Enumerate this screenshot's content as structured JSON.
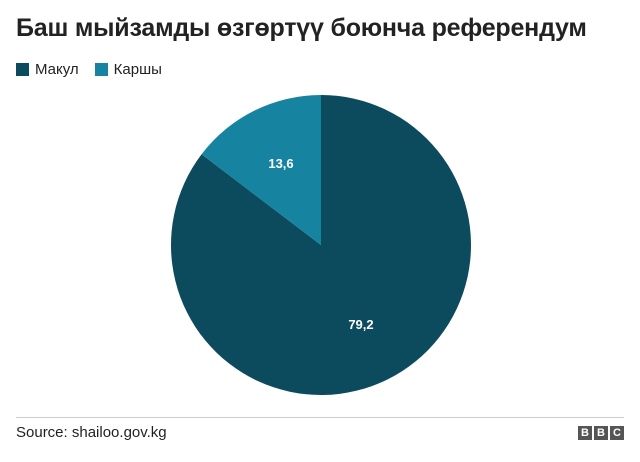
{
  "title": "Баш мыйзамды өзгөртүү боюнча референдум",
  "legend": {
    "items": [
      {
        "label": "Макул",
        "color": "#0c4b5e"
      },
      {
        "label": "Каршы",
        "color": "#1684a0"
      }
    ]
  },
  "chart_data": {
    "type": "pie",
    "title": "Баш мыйзамды өзгөртүү боюнча референдум",
    "slices": [
      {
        "name": "Макул",
        "value": 79.2,
        "label": "79,2",
        "color": "#0c4b5e"
      },
      {
        "name": "Каршы",
        "value": 13.6,
        "label": "13,6",
        "color": "#1684a0"
      }
    ],
    "start": "12 o'clock",
    "direction": "clockwise",
    "legend_position": "top-left"
  },
  "footer": {
    "source": "Source: shailoo.gov.kg",
    "logo": [
      "B",
      "B",
      "C"
    ]
  }
}
